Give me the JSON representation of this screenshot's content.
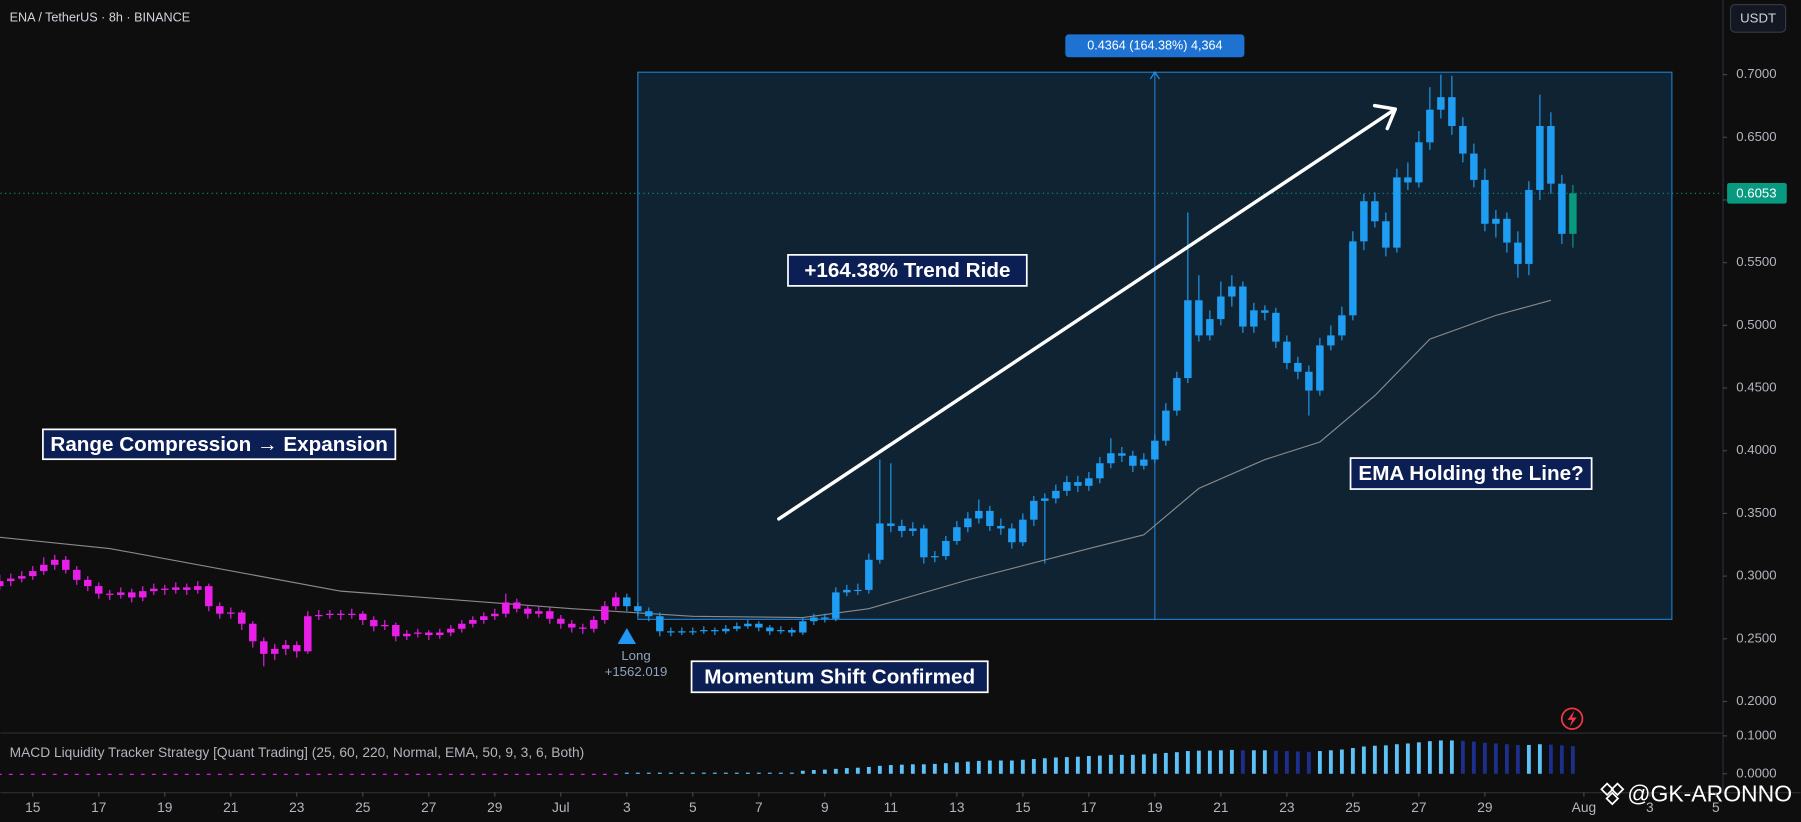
{
  "header": {
    "symbol": "ENA / TetherUS · 8h · BINANCE",
    "currency": "USDT"
  },
  "chart_data": [
    {
      "type": "candlestick",
      "open": [
        0.292,
        0.296,
        0.298,
        0.3,
        0.304,
        0.309,
        0.313,
        0.305,
        0.297,
        0.292,
        0.286,
        0.285,
        0.287,
        0.283,
        0.288,
        0.29,
        0.289,
        0.291,
        0.289,
        0.292,
        0.276,
        0.27,
        0.271,
        0.262,
        0.248,
        0.238,
        0.242,
        0.245,
        0.24,
        0.268,
        0.269,
        0.27,
        0.269,
        0.27,
        0.265,
        0.26,
        0.261,
        0.252,
        0.254,
        0.255,
        0.253,
        0.255,
        0.258,
        0.262,
        0.265,
        0.268,
        0.27,
        0.279,
        0.274,
        0.27,
        0.272,
        0.266,
        0.262,
        0.259,
        0.258,
        0.265,
        0.276,
        0.283,
        0.276,
        0.272,
        0.268,
        0.256,
        0.255,
        0.256,
        0.256,
        0.257,
        0.256,
        0.258,
        0.26,
        0.262,
        0.259,
        0.256,
        0.257,
        0.255,
        0.264,
        0.267,
        0.266,
        0.287,
        0.289,
        0.289,
        0.313,
        0.342,
        0.34,
        0.336,
        0.338,
        0.315,
        0.316,
        0.328,
        0.339,
        0.346,
        0.352,
        0.34,
        0.338,
        0.327,
        0.345,
        0.36,
        0.362,
        0.368,
        0.375,
        0.372,
        0.378,
        0.39,
        0.398,
        0.396,
        0.388,
        0.393,
        0.408,
        0.432,
        0.458,
        0.52,
        0.492,
        0.505,
        0.523,
        0.531,
        0.499,
        0.512,
        0.51,
        0.487,
        0.47,
        0.463,
        0.448,
        0.484,
        0.492,
        0.508,
        0.567,
        0.599,
        0.583,
        0.562,
        0.618,
        0.614,
        0.646,
        0.672,
        0.682,
        0.659,
        0.637,
        0.616,
        0.581,
        0.585,
        0.566,
        0.549,
        0.608,
        0.659,
        0.613,
        0.573
      ],
      "high": [
        0.301,
        0.302,
        0.304,
        0.308,
        0.315,
        0.317,
        0.316,
        0.308,
        0.3,
        0.295,
        0.289,
        0.291,
        0.29,
        0.292,
        0.294,
        0.293,
        0.295,
        0.294,
        0.296,
        0.294,
        0.279,
        0.275,
        0.273,
        0.264,
        0.251,
        0.246,
        0.249,
        0.248,
        0.272,
        0.273,
        0.273,
        0.273,
        0.274,
        0.272,
        0.268,
        0.265,
        0.263,
        0.257,
        0.258,
        0.257,
        0.258,
        0.261,
        0.265,
        0.268,
        0.271,
        0.274,
        0.286,
        0.282,
        0.277,
        0.276,
        0.275,
        0.269,
        0.265,
        0.262,
        0.268,
        0.28,
        0.287,
        0.286,
        0.279,
        0.275,
        0.271,
        0.259,
        0.259,
        0.259,
        0.26,
        0.259,
        0.261,
        0.263,
        0.265,
        0.264,
        0.261,
        0.26,
        0.259,
        0.267,
        0.27,
        0.27,
        0.291,
        0.293,
        0.294,
        0.318,
        0.393,
        0.39,
        0.345,
        0.343,
        0.341,
        0.32,
        0.332,
        0.344,
        0.351,
        0.361,
        0.356,
        0.346,
        0.342,
        0.35,
        0.364,
        0.366,
        0.373,
        0.38,
        0.38,
        0.383,
        0.395,
        0.41,
        0.403,
        0.4,
        0.398,
        0.413,
        0.438,
        0.463,
        0.59,
        0.54,
        0.512,
        0.535,
        0.54,
        0.535,
        0.518,
        0.516,
        0.514,
        0.492,
        0.475,
        0.468,
        0.49,
        0.5,
        0.515,
        0.575,
        0.605,
        0.606,
        0.59,
        0.625,
        0.63,
        0.655,
        0.69,
        0.7,
        0.699,
        0.666,
        0.645,
        0.625,
        0.592,
        0.59,
        0.575,
        0.615,
        0.684,
        0.67,
        0.62,
        0.612
      ],
      "low": [
        0.289,
        0.292,
        0.295,
        0.297,
        0.301,
        0.305,
        0.302,
        0.293,
        0.288,
        0.282,
        0.281,
        0.282,
        0.279,
        0.28,
        0.285,
        0.285,
        0.286,
        0.285,
        0.286,
        0.272,
        0.266,
        0.266,
        0.257,
        0.243,
        0.228,
        0.233,
        0.237,
        0.235,
        0.238,
        0.265,
        0.266,
        0.265,
        0.266,
        0.261,
        0.256,
        0.257,
        0.248,
        0.249,
        0.251,
        0.249,
        0.25,
        0.252,
        0.255,
        0.259,
        0.262,
        0.265,
        0.267,
        0.271,
        0.266,
        0.267,
        0.262,
        0.258,
        0.255,
        0.254,
        0.255,
        0.262,
        0.273,
        0.272,
        0.268,
        0.264,
        0.252,
        0.252,
        0.253,
        0.253,
        0.254,
        0.253,
        0.254,
        0.256,
        0.258,
        0.256,
        0.253,
        0.254,
        0.252,
        0.253,
        0.261,
        0.263,
        0.264,
        0.284,
        0.285,
        0.286,
        0.31,
        0.335,
        0.331,
        0.332,
        0.31,
        0.311,
        0.313,
        0.325,
        0.335,
        0.342,
        0.336,
        0.333,
        0.322,
        0.324,
        0.34,
        0.31,
        0.358,
        0.364,
        0.367,
        0.368,
        0.374,
        0.386,
        0.391,
        0.383,
        0.385,
        0.39,
        0.404,
        0.428,
        0.454,
        0.487,
        0.488,
        0.5,
        0.515,
        0.494,
        0.494,
        0.504,
        0.482,
        0.465,
        0.457,
        0.428,
        0.444,
        0.48,
        0.488,
        0.504,
        0.56,
        0.578,
        0.555,
        0.558,
        0.608,
        0.61,
        0.64,
        0.665,
        0.652,
        0.63,
        0.61,
        0.575,
        0.57,
        0.558,
        0.538,
        0.54,
        0.6,
        0.605,
        0.565,
        0.562
      ],
      "close": [
        0.296,
        0.298,
        0.3,
        0.304,
        0.309,
        0.313,
        0.305,
        0.297,
        0.292,
        0.286,
        0.285,
        0.287,
        0.283,
        0.288,
        0.29,
        0.289,
        0.291,
        0.289,
        0.292,
        0.276,
        0.27,
        0.271,
        0.262,
        0.248,
        0.238,
        0.242,
        0.245,
        0.24,
        0.268,
        0.269,
        0.27,
        0.269,
        0.27,
        0.265,
        0.26,
        0.261,
        0.252,
        0.254,
        0.255,
        0.253,
        0.255,
        0.258,
        0.262,
        0.265,
        0.268,
        0.27,
        0.279,
        0.274,
        0.27,
        0.272,
        0.266,
        0.262,
        0.259,
        0.258,
        0.265,
        0.276,
        0.283,
        0.276,
        0.272,
        0.268,
        0.256,
        0.255,
        0.256,
        0.256,
        0.257,
        0.256,
        0.258,
        0.26,
        0.262,
        0.259,
        0.256,
        0.257,
        0.255,
        0.264,
        0.267,
        0.266,
        0.287,
        0.289,
        0.289,
        0.313,
        0.342,
        0.34,
        0.336,
        0.338,
        0.315,
        0.316,
        0.328,
        0.339,
        0.346,
        0.352,
        0.34,
        0.338,
        0.327,
        0.345,
        0.36,
        0.362,
        0.368,
        0.375,
        0.372,
        0.378,
        0.39,
        0.398,
        0.396,
        0.388,
        0.393,
        0.408,
        0.432,
        0.458,
        0.52,
        0.492,
        0.505,
        0.523,
        0.531,
        0.499,
        0.512,
        0.51,
        0.487,
        0.47,
        0.463,
        0.448,
        0.484,
        0.492,
        0.508,
        0.567,
        0.599,
        0.583,
        0.562,
        0.618,
        0.614,
        0.646,
        0.672,
        0.682,
        0.659,
        0.637,
        0.616,
        0.581,
        0.585,
        0.566,
        0.549,
        0.608,
        0.659,
        0.613,
        0.573,
        0.6053
      ],
      "colors": [
        "#e91ee9",
        "#e91ee9",
        "#e91ee9",
        "#e91ee9",
        "#e91ee9",
        "#e91ee9",
        "#e91ee9",
        "#e91ee9",
        "#e91ee9",
        "#e91ee9",
        "#e91ee9",
        "#e91ee9",
        "#e91ee9",
        "#e91ee9",
        "#e91ee9",
        "#e91ee9",
        "#e91ee9",
        "#e91ee9",
        "#e91ee9",
        "#e91ee9",
        "#e91ee9",
        "#e91ee9",
        "#e91ee9",
        "#e91ee9",
        "#e91ee9",
        "#e91ee9",
        "#e91ee9",
        "#e91ee9",
        "#e91ee9",
        "#e91ee9",
        "#e91ee9",
        "#e91ee9",
        "#e91ee9",
        "#e91ee9",
        "#e91ee9",
        "#e91ee9",
        "#e91ee9",
        "#e91ee9",
        "#e91ee9",
        "#e91ee9",
        "#e91ee9",
        "#e91ee9",
        "#e91ee9",
        "#e91ee9",
        "#e91ee9",
        "#e91ee9",
        "#e91ee9",
        "#e91ee9",
        "#e91ee9",
        "#e91ee9",
        "#e91ee9",
        "#e91ee9",
        "#e91ee9",
        "#e91ee9",
        "#e91ee9",
        "#e91ee9",
        "#e91ee9",
        "#1e9df2",
        "#1e9df2",
        "#1e9df2",
        "#1e9df2",
        "#1e9df2",
        "#1e9df2",
        "#1e9df2",
        "#1e9df2",
        "#1e9df2",
        "#1e9df2",
        "#1e9df2",
        "#1e9df2",
        "#1e9df2",
        "#1e9df2",
        "#1e9df2",
        "#1e9df2",
        "#1e9df2",
        "#1e9df2",
        "#1e9df2",
        "#1e9df2",
        "#1e9df2",
        "#1e9df2",
        "#1e9df2",
        "#1e9df2",
        "#1e9df2",
        "#1e9df2",
        "#1e9df2",
        "#1e9df2",
        "#1e9df2",
        "#1e9df2",
        "#1e9df2",
        "#1e9df2",
        "#1e9df2",
        "#1e9df2",
        "#1e9df2",
        "#1e9df2",
        "#1e9df2",
        "#1e9df2",
        "#1e9df2",
        "#1e9df2",
        "#1e9df2",
        "#1e9df2",
        "#1e9df2",
        "#1e9df2",
        "#1e9df2",
        "#1e9df2",
        "#1e9df2",
        "#1e9df2",
        "#1e9df2",
        "#1e9df2",
        "#1e9df2",
        "#1e9df2",
        "#1e9df2",
        "#1e9df2",
        "#1e9df2",
        "#1e9df2",
        "#1e9df2",
        "#1e9df2",
        "#1e9df2",
        "#1e9df2",
        "#1e9df2",
        "#1e9df2",
        "#1e9df2",
        "#1e9df2",
        "#1e9df2",
        "#1e9df2",
        "#1e9df2",
        "#1e9df2",
        "#1e9df2",
        "#1e9df2",
        "#1e9df2",
        "#1e9df2",
        "#1e9df2",
        "#1e9df2",
        "#1e9df2",
        "#1e9df2",
        "#1e9df2",
        "#1e9df2",
        "#1e9df2",
        "#1e9df2",
        "#1e9df2",
        "#1e9df2",
        "#1e9df2",
        "#1e9df2",
        "#1e9df2",
        "#1e9df2",
        "#089981"
      ],
      "xlim": [
        0.06,
        156.6
      ],
      "ylim": [
        0.1753,
        0.7595
      ],
      "xticks": [
        {
          "value": 3,
          "label": "15"
        },
        {
          "value": 9,
          "label": "17"
        },
        {
          "value": 15,
          "label": "19"
        },
        {
          "value": 21,
          "label": "21"
        },
        {
          "value": 27,
          "label": "23"
        },
        {
          "value": 33,
          "label": "25"
        },
        {
          "value": 39,
          "label": "27"
        },
        {
          "value": 45,
          "label": "29"
        },
        {
          "value": 51,
          "label": "Jul"
        },
        {
          "value": 57,
          "label": "3"
        },
        {
          "value": 63,
          "label": "5"
        },
        {
          "value": 69,
          "label": "7"
        },
        {
          "value": 75,
          "label": "9"
        },
        {
          "value": 81,
          "label": "11"
        },
        {
          "value": 87,
          "label": "13"
        },
        {
          "value": 93,
          "label": "15"
        },
        {
          "value": 99,
          "label": "17"
        },
        {
          "value": 105,
          "label": "19"
        },
        {
          "value": 111,
          "label": "21"
        },
        {
          "value": 117,
          "label": "23"
        },
        {
          "value": 123,
          "label": "25"
        },
        {
          "value": 129,
          "label": "27"
        },
        {
          "value": 135,
          "label": "29"
        },
        {
          "value": 144,
          "label": "Aug"
        },
        {
          "value": 150,
          "label": "3"
        },
        {
          "value": 156,
          "label": "5"
        }
      ],
      "yticks": [
        {
          "value": 0.7,
          "label": "0.7000"
        },
        {
          "value": 0.65,
          "label": "0.6500"
        },
        {
          "value": 0.6,
          "label": "0.6000"
        },
        {
          "value": 0.55,
          "label": "0.5500"
        },
        {
          "value": 0.5,
          "label": "0.5000"
        },
        {
          "value": 0.45,
          "label": "0.4500"
        },
        {
          "value": 0.4,
          "label": "0.4000"
        },
        {
          "value": 0.35,
          "label": "0.3500"
        },
        {
          "value": 0.3,
          "label": "0.3000"
        },
        {
          "value": 0.25,
          "label": "0.2500"
        },
        {
          "value": 0.2,
          "label": "0.2000"
        }
      ],
      "last_price": {
        "value": 0.6053,
        "color": "#089981"
      },
      "ema": {
        "x": [
          0,
          10,
          31,
          52,
          63,
          73,
          79,
          88,
          99,
          104,
          109,
          115,
          120,
          125,
          130,
          136,
          141
        ],
        "values": [
          0.331,
          0.322,
          0.288,
          0.274,
          0.268,
          0.267,
          0.274,
          0.297,
          0.322,
          0.333,
          0.37,
          0.393,
          0.407,
          0.444,
          0.489,
          0.508,
          0.52
        ],
        "color": "#8a8a8a"
      },
      "position": {
        "xlim": [
          58,
          152
        ],
        "ylim": [
          0.2655,
          0.7019
        ],
        "label": "0.4364 (164.38%) 4,364",
        "color": "#2196f3"
      },
      "signal": {
        "x": 57,
        "label": "Long",
        "value_label": "+1562.019",
        "color": "#2196f3"
      },
      "annotations": [
        "Range Compression → Expansion",
        "+164.38% Trend Ride",
        "Momentum Shift Confirmed",
        "EMA Holding the Line?"
      ]
    },
    {
      "type": "histogram",
      "title": "MACD Liquidity Tracker Strategy [Quant Trading] (25, 60, 220, Normal, EMA, 50, 9, 3, 6, Both)",
      "values": [
        -0.003,
        -0.003,
        -0.003,
        -0.003,
        -0.003,
        -0.003,
        -0.003,
        -0.003,
        -0.003,
        -0.003,
        -0.003,
        -0.003,
        -0.003,
        -0.003,
        -0.003,
        -0.003,
        -0.003,
        -0.003,
        -0.003,
        -0.003,
        -0.003,
        -0.003,
        -0.003,
        -0.003,
        -0.003,
        -0.003,
        -0.003,
        -0.003,
        -0.003,
        -0.003,
        -0.003,
        -0.003,
        -0.003,
        -0.003,
        -0.003,
        -0.003,
        -0.003,
        -0.003,
        -0.003,
        -0.003,
        -0.003,
        -0.003,
        -0.003,
        -0.003,
        -0.003,
        -0.003,
        -0.003,
        -0.003,
        -0.003,
        -0.003,
        -0.003,
        -0.003,
        -0.003,
        -0.003,
        -0.003,
        -0.003,
        -0.003,
        0.003,
        0.003,
        0.003,
        0.003,
        0.003,
        0.003,
        0.003,
        0.003,
        0.003,
        0.003,
        0.003,
        0.003,
        0.003,
        0.003,
        0.003,
        0.003,
        0.008,
        0.01,
        0.011,
        0.013,
        0.015,
        0.016,
        0.018,
        0.021,
        0.023,
        0.024,
        0.025,
        0.025,
        0.026,
        0.028,
        0.03,
        0.032,
        0.034,
        0.035,
        0.035,
        0.035,
        0.037,
        0.039,
        0.041,
        0.043,
        0.044,
        0.045,
        0.047,
        0.048,
        0.05,
        0.05,
        0.05,
        0.051,
        0.053,
        0.055,
        0.057,
        0.06,
        0.061,
        0.061,
        0.062,
        0.063,
        0.062,
        0.062,
        0.062,
        0.061,
        0.06,
        0.059,
        0.058,
        0.06,
        0.062,
        0.064,
        0.068,
        0.072,
        0.074,
        0.075,
        0.078,
        0.08,
        0.083,
        0.086,
        0.088,
        0.088,
        0.087,
        0.085,
        0.082,
        0.08,
        0.078,
        0.076,
        0.076,
        0.078,
        0.077,
        0.075,
        0.073
      ],
      "colors": {
        "rising": "#5cc2f7",
        "falling": "#1c2f8c",
        "negative": "#e91ee9"
      },
      "xlim": [
        0.06,
        156.6
      ],
      "ylim": [
        -0.0485,
        0.103
      ],
      "yticks": [
        {
          "value": 0.1,
          "label": "0.1000"
        },
        {
          "value": 0,
          "label": "0.0000"
        }
      ]
    }
  ],
  "watermark": "@GK-ARONNO"
}
